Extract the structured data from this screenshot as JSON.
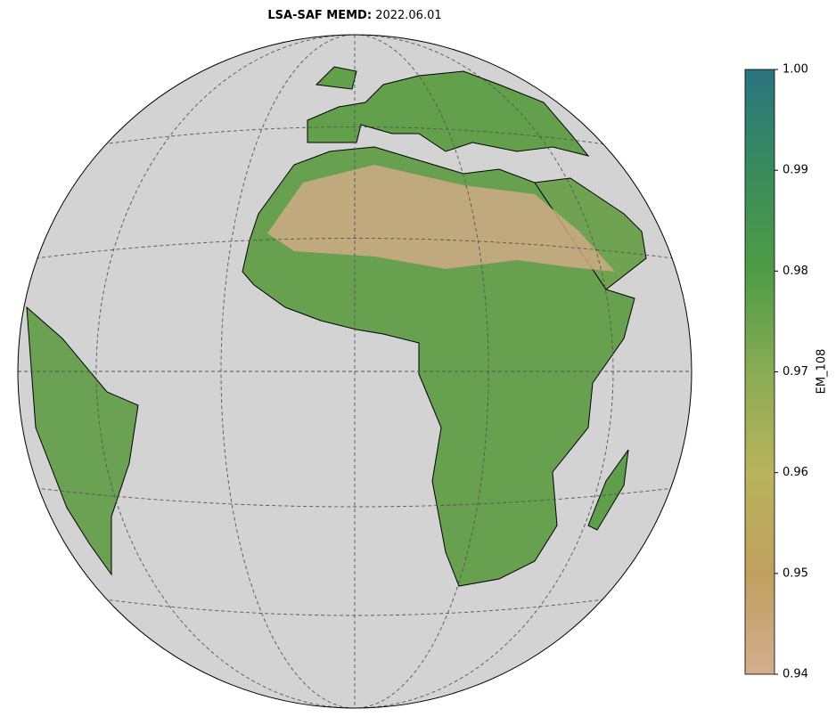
{
  "title_bold": "LSA-SAF MEMD:",
  "title_date": "2022.06.01",
  "colorbar": {
    "label": "EM_108",
    "lim": [
      0.94,
      1.0
    ],
    "ticks": [
      0.94,
      0.95,
      0.96,
      0.97,
      0.98,
      0.99,
      {
        "value": 1,
        "label": "1.00"
      }
    ],
    "colors": [
      "#d3ad8e",
      "#c0a060",
      "#b8b45c",
      "#8aab55",
      "#4e9c46",
      "#3a8b5c",
      "#2b7381"
    ]
  }
}
